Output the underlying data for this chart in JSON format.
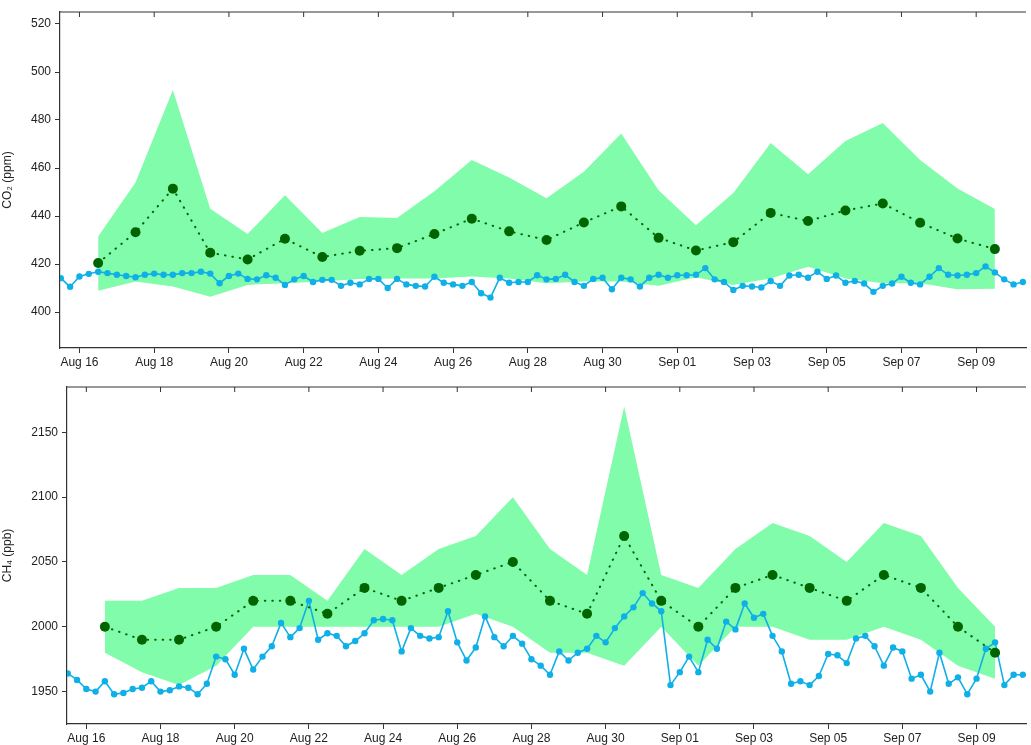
{
  "chart_data": [
    {
      "type": "line",
      "ylabel": "CO₂ (ppm)",
      "ylim": [
        385,
        525
      ],
      "yticks": [
        400,
        420,
        440,
        460,
        480,
        500,
        520
      ],
      "xlim": [
        "--08-15T11:30",
        "--09-10T08:00"
      ],
      "xticks": [
        {
          "value": "--08-16",
          "label": "Aug 16"
        },
        {
          "value": "--08-18",
          "label": "Aug 18"
        },
        {
          "value": "--08-20",
          "label": "Aug 20"
        },
        {
          "value": "--08-22",
          "label": "Aug 22"
        },
        {
          "value": "--08-24",
          "label": "Aug 24"
        },
        {
          "value": "--08-26",
          "label": "Aug 26"
        },
        {
          "value": "--08-28",
          "label": "Aug 28"
        },
        {
          "value": "--08-30",
          "label": "Aug 30"
        },
        {
          "value": "--09-01",
          "label": "Sep 01"
        },
        {
          "value": "--09-03",
          "label": "Sep 03"
        },
        {
          "value": "--09-05",
          "label": "Sep 05"
        },
        {
          "value": "--09-07",
          "label": "Sep 07"
        },
        {
          "value": "--09-09",
          "label": "Sep 09"
        }
      ],
      "grid": false,
      "legend": false,
      "x": [
        "--08-15T12:00",
        "--08-15T18:00",
        "--08-16T00:00",
        "--08-16T06:00",
        "--08-16T12:00",
        "--08-16T18:00",
        "--08-17T00:00",
        "--08-17T06:00",
        "--08-17T12:00",
        "--08-17T18:00",
        "--08-18T00:00",
        "--08-18T06:00",
        "--08-18T12:00",
        "--08-18T18:00",
        "--08-19T00:00",
        "--08-19T06:00",
        "--08-19T12:00",
        "--08-19T18:00",
        "--08-20T00:00",
        "--08-20T06:00",
        "--08-20T12:00",
        "--08-20T18:00",
        "--08-21T00:00",
        "--08-21T06:00",
        "--08-21T12:00",
        "--08-21T18:00",
        "--08-22T00:00",
        "--08-22T06:00",
        "--08-22T12:00",
        "--08-22T18:00",
        "--08-23T00:00",
        "--08-23T06:00",
        "--08-23T12:00",
        "--08-23T18:00",
        "--08-24T00:00",
        "--08-24T06:00",
        "--08-24T12:00",
        "--08-24T18:00",
        "--08-25T00:00",
        "--08-25T06:00",
        "--08-25T12:00",
        "--08-25T18:00",
        "--08-26T00:00",
        "--08-26T06:00",
        "--08-26T12:00",
        "--08-26T18:00",
        "--08-27T00:00",
        "--08-27T06:00",
        "--08-27T12:00",
        "--08-27T18:00",
        "--08-28T00:00",
        "--08-28T06:00",
        "--08-28T12:00",
        "--08-28T18:00",
        "--08-29T00:00",
        "--08-29T06:00",
        "--08-29T12:00",
        "--08-29T18:00",
        "--08-30T00:00",
        "--08-30T06:00",
        "--08-30T12:00",
        "--08-30T18:00",
        "--08-31T00:00",
        "--08-31T06:00",
        "--08-31T12:00",
        "--08-31T18:00",
        "--09-01T00:00",
        "--09-01T06:00",
        "--09-01T12:00",
        "--09-01T18:00",
        "--09-02T00:00",
        "--09-02T06:00",
        "--09-02T12:00",
        "--09-02T18:00",
        "--09-03T00:00",
        "--09-03T06:00",
        "--09-03T12:00",
        "--09-03T18:00",
        "--09-04T00:00",
        "--09-04T06:00",
        "--09-04T12:00",
        "--09-04T18:00",
        "--09-05T00:00",
        "--09-05T06:00",
        "--09-05T12:00",
        "--09-05T18:00",
        "--09-06T00:00",
        "--09-06T06:00",
        "--09-06T12:00",
        "--09-06T18:00",
        "--09-07T00:00",
        "--09-07T06:00",
        "--09-07T12:00",
        "--09-07T18:00",
        "--09-08T00:00",
        "--09-08T06:00",
        "--09-08T12:00",
        "--09-08T18:00",
        "--09-09T00:00",
        "--09-09T06:00",
        "--09-09T12:00",
        "--09-09T18:00",
        "--09-10T00:00",
        "--09-10T06:00"
      ],
      "series": [
        {
          "type": "line",
          "color": "#0fb0e8",
          "marker": "circle",
          "line_style": "solid",
          "values": [
            414.1,
            410.5,
            414.8,
            415.9,
            416.8,
            416.2,
            415.5,
            415,
            414.5,
            415.5,
            416,
            415.5,
            415.5,
            416.2,
            416.2,
            416.8,
            416,
            412,
            415,
            416,
            413.8,
            413.6,
            415.3,
            414.3,
            411.3,
            413.6,
            415,
            412.5,
            413.4,
            413.4,
            410.9,
            412.2,
            411.5,
            413.8,
            413.8,
            410,
            413.8,
            411.5,
            410.9,
            410.6,
            414.7,
            412.2,
            411.5,
            410.9,
            412.5,
            407.8,
            406,
            414.3,
            412.2,
            412.5,
            412.5,
            415.3,
            413.6,
            413.8,
            415.5,
            412.5,
            410.9,
            413.8,
            414.3,
            409.5,
            414.3,
            413.6,
            410.6,
            414.3,
            415.5,
            414.3,
            415.3,
            415.3,
            415.5,
            418.3,
            413.6,
            412.5,
            409.2,
            410.9,
            410.6,
            410.2,
            412.9,
            410.9,
            415.2,
            415.5,
            414.3,
            416.8,
            413.8,
            415.2,
            412.2,
            412.9,
            411.9,
            408.4,
            410.9,
            411.9,
            414.7,
            412.2,
            411.5,
            414.7,
            418.3,
            415.5,
            415.2,
            415.5,
            416.2,
            419,
            416.5,
            413.6,
            411.5,
            412.5
          ]
        },
        {
          "type": "line",
          "color": "#006400",
          "marker": "circle",
          "line_style": "dotted",
          "x": [
            "--08-16T12:00",
            "--08-17T12:00",
            "--08-18T12:00",
            "--08-19T12:00",
            "--08-20T12:00",
            "--08-21T12:00",
            "--08-22T12:00",
            "--08-23T12:00",
            "--08-24T12:00",
            "--08-25T12:00",
            "--08-26T12:00",
            "--08-27T12:00",
            "--08-28T12:00",
            "--08-29T12:00",
            "--08-30T12:00",
            "--08-31T12:00",
            "--09-01T12:00",
            "--09-02T12:00",
            "--09-03T12:00",
            "--09-04T12:00",
            "--09-05T12:00",
            "--09-06T12:00",
            "--09-07T12:00",
            "--09-08T12:00",
            "--09-09T12:00"
          ],
          "values": [
            420.4,
            433.2,
            451.4,
            424.7,
            421.9,
            430.5,
            422.9,
            425.5,
            426.6,
            432.5,
            438.9,
            433.6,
            430,
            437.3,
            444,
            430.9,
            425.6,
            429.1,
            441.3,
            437.9,
            442.3,
            445.2,
            437.2,
            430.6,
            426.2
          ],
          "lower": [
            408.9,
            412.7,
            410.6,
            406.4,
            411.3,
            412,
            412.7,
            413.7,
            414,
            414,
            414.8,
            414,
            412,
            412.7,
            412.7,
            410.9,
            414.5,
            411.3,
            414,
            418.9,
            414,
            412,
            412,
            409.5,
            409.7
          ],
          "upper": [
            431.5,
            454,
            492.5,
            443,
            432.5,
            448.6,
            432.9,
            439.6,
            439.2,
            450.3,
            463.3,
            456,
            447.4,
            458.4,
            474.4,
            450.7,
            436.1,
            449.6,
            470.4,
            457.4,
            471.2,
            478.7,
            463.3,
            451.5,
            442.9
          ]
        }
      ]
    },
    {
      "type": "line",
      "ylabel": "CH₄ (ppb)",
      "ylim": [
        1925,
        2185
      ],
      "yticks": [
        1950,
        2000,
        2050,
        2100,
        2150
      ],
      "xlim": [
        "--08-15T11:30",
        "--09-10T08:00"
      ],
      "xticks": [
        {
          "value": "--08-16",
          "label": "Aug 16"
        },
        {
          "value": "--08-18",
          "label": "Aug 18"
        },
        {
          "value": "--08-20",
          "label": "Aug 20"
        },
        {
          "value": "--08-22",
          "label": "Aug 22"
        },
        {
          "value": "--08-24",
          "label": "Aug 24"
        },
        {
          "value": "--08-26",
          "label": "Aug 26"
        },
        {
          "value": "--08-28",
          "label": "Aug 28"
        },
        {
          "value": "--08-30",
          "label": "Aug 30"
        },
        {
          "value": "--09-01",
          "label": "Sep 01"
        },
        {
          "value": "--09-03",
          "label": "Sep 03"
        },
        {
          "value": "--09-05",
          "label": "Sep 05"
        },
        {
          "value": "--09-07",
          "label": "Sep 07"
        },
        {
          "value": "--09-09",
          "label": "Sep 09"
        }
      ],
      "grid": false,
      "legend": false,
      "x": [
        "--08-15T12:00",
        "--08-15T18:00",
        "--08-16T00:00",
        "--08-16T06:00",
        "--08-16T12:00",
        "--08-16T18:00",
        "--08-17T00:00",
        "--08-17T06:00",
        "--08-17T12:00",
        "--08-17T18:00",
        "--08-18T00:00",
        "--08-18T06:00",
        "--08-18T12:00",
        "--08-18T18:00",
        "--08-19T00:00",
        "--08-19T06:00",
        "--08-19T12:00",
        "--08-19T18:00",
        "--08-20T00:00",
        "--08-20T06:00",
        "--08-20T12:00",
        "--08-20T18:00",
        "--08-21T00:00",
        "--08-21T06:00",
        "--08-21T12:00",
        "--08-21T18:00",
        "--08-22T00:00",
        "--08-22T06:00",
        "--08-22T12:00",
        "--08-22T18:00",
        "--08-23T00:00",
        "--08-23T06:00",
        "--08-23T12:00",
        "--08-23T18:00",
        "--08-24T00:00",
        "--08-24T06:00",
        "--08-24T12:00",
        "--08-24T18:00",
        "--08-25T00:00",
        "--08-25T06:00",
        "--08-25T12:00",
        "--08-25T18:00",
        "--08-26T00:00",
        "--08-26T06:00",
        "--08-26T12:00",
        "--08-26T18:00",
        "--08-27T00:00",
        "--08-27T06:00",
        "--08-27T12:00",
        "--08-27T18:00",
        "--08-28T00:00",
        "--08-28T06:00",
        "--08-28T12:00",
        "--08-28T18:00",
        "--08-29T00:00",
        "--08-29T06:00",
        "--08-29T12:00",
        "--08-29T18:00",
        "--08-30T00:00",
        "--08-30T06:00",
        "--08-30T12:00",
        "--08-30T18:00",
        "--08-31T00:00",
        "--08-31T06:00",
        "--08-31T12:00",
        "--08-31T18:00",
        "--09-01T00:00",
        "--09-01T06:00",
        "--09-01T12:00",
        "--09-01T18:00",
        "--09-02T00:00",
        "--09-02T06:00",
        "--09-02T12:00",
        "--09-02T18:00",
        "--09-03T00:00",
        "--09-03T06:00",
        "--09-03T12:00",
        "--09-03T18:00",
        "--09-04T00:00",
        "--09-04T06:00",
        "--09-04T12:00",
        "--09-04T18:00",
        "--09-05T00:00",
        "--09-05T06:00",
        "--09-05T12:00",
        "--09-05T18:00",
        "--09-06T00:00",
        "--09-06T06:00",
        "--09-06T12:00",
        "--09-06T18:00",
        "--09-07T00:00",
        "--09-07T06:00",
        "--09-07T12:00",
        "--09-07T18:00",
        "--09-08T00:00",
        "--09-08T06:00",
        "--09-08T12:00",
        "--09-08T18:00",
        "--09-09T00:00",
        "--09-09T06:00",
        "--09-09T12:00",
        "--09-09T18:00",
        "--09-10T00:00",
        "--09-10T06:00"
      ],
      "series": [
        {
          "type": "line",
          "color": "#0fb0e8",
          "marker": "circle",
          "line_style": "solid",
          "values": [
            1964,
            1959,
            1952,
            1950,
            1958,
            1948,
            1949,
            1952,
            1953,
            1958,
            1950,
            1951,
            1954,
            1953,
            1948,
            1956,
            1977,
            1975,
            1963,
            1983,
            1967,
            1977,
            1985,
            2003,
            1992,
            1999,
            2020,
            1990,
            1995,
            1993,
            1985,
            1989,
            1995,
            2005,
            2006,
            2005,
            1981,
            1999,
            1993,
            1991,
            1992,
            2012,
            1988,
            1974,
            1984,
            2008,
            1992,
            1985,
            1993,
            1987,
            1975,
            1970,
            1963,
            1981,
            1974,
            1980,
            1983,
            1993,
            1988,
            1999,
            2008,
            2015,
            2026,
            2018,
            2012,
            1955,
            1965,
            1977,
            1965,
            1990,
            1983,
            2004,
            1998,
            2018,
            2007,
            2010,
            1993,
            1981,
            1956,
            1958,
            1955,
            1962,
            1979,
            1978,
            1972,
            1991,
            1993,
            1985,
            1970,
            1984,
            1981,
            1960,
            1963,
            1950,
            1980,
            1956,
            1961,
            1948,
            1960,
            1983,
            1988,
            1955,
            1963,
            1963
          ]
        },
        {
          "type": "line",
          "color": "#006400",
          "marker": "circle",
          "line_style": "dotted",
          "x": [
            "--08-16T12:00",
            "--08-17T12:00",
            "--08-18T12:00",
            "--08-19T12:00",
            "--08-20T12:00",
            "--08-21T12:00",
            "--08-22T12:00",
            "--08-23T12:00",
            "--08-24T12:00",
            "--08-25T12:00",
            "--08-26T12:00",
            "--08-27T12:00",
            "--08-28T12:00",
            "--08-29T12:00",
            "--08-30T12:00",
            "--08-31T12:00",
            "--09-01T12:00",
            "--09-02T12:00",
            "--09-03T12:00",
            "--09-04T12:00",
            "--09-05T12:00",
            "--09-06T12:00",
            "--09-07T12:00",
            "--09-08T12:00",
            "--09-09T12:00"
          ],
          "values": [
            2000,
            1990,
            1990,
            2000,
            2020,
            2020,
            2010,
            2030,
            2020,
            2030,
            2040,
            2050,
            2020,
            2010,
            2070,
            2020,
            2000,
            2030,
            2040,
            2030,
            2020,
            2040,
            2030,
            2000,
            1980
          ],
          "lower": [
            1980,
            1965,
            1955,
            1970,
            2000,
            2000,
            2000,
            2000,
            2000,
            2000,
            2010,
            2000,
            1980,
            1980,
            1970,
            2000,
            1970,
            2000,
            2000,
            1990,
            1990,
            2000,
            1990,
            1970,
            1960
          ],
          "upper": [
            2020,
            2020,
            2030,
            2030,
            2040,
            2040,
            2020,
            2060,
            2040,
            2060,
            2070,
            2100,
            2060,
            2040,
            2170,
            2040,
            2030,
            2060,
            2080,
            2070,
            2050,
            2080,
            2070,
            2030,
            2000
          ]
        }
      ]
    }
  ]
}
